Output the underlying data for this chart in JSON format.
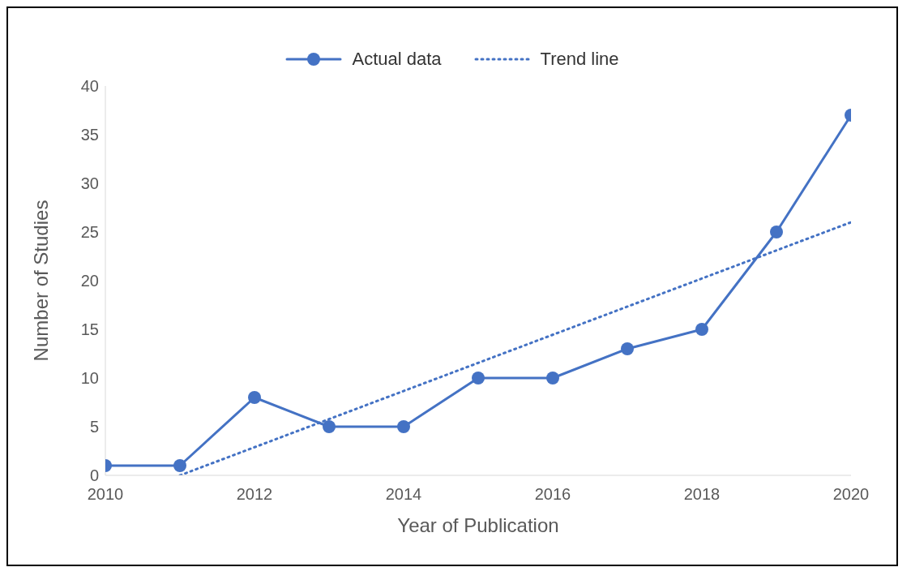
{
  "chart_data": {
    "type": "line",
    "xlabel": "Year of Publication",
    "ylabel": "Number of Studies",
    "xlim": [
      2010,
      2020
    ],
    "xticks": [
      2010,
      2012,
      2014,
      2016,
      2018,
      2020
    ],
    "ylim": [
      0,
      40
    ],
    "yticks": [
      0,
      5,
      10,
      15,
      20,
      25,
      30,
      35,
      40
    ],
    "grid": false,
    "legend": "top",
    "series": [
      {
        "name": "Actual data",
        "color": "#4472c4",
        "marker": "circle",
        "line_style": "solid",
        "x": [
          2010,
          2011,
          2012,
          2013,
          2014,
          2015,
          2016,
          2017,
          2018,
          2019,
          2020
        ],
        "values": [
          1,
          1,
          8,
          5,
          5,
          10,
          10,
          13,
          15,
          25,
          37
        ]
      },
      {
        "name": "Trend line",
        "color": "#4472c4",
        "marker": "none",
        "line_style": "dotted",
        "x": [
          2011,
          2020
        ],
        "values": [
          0,
          26
        ]
      }
    ]
  }
}
